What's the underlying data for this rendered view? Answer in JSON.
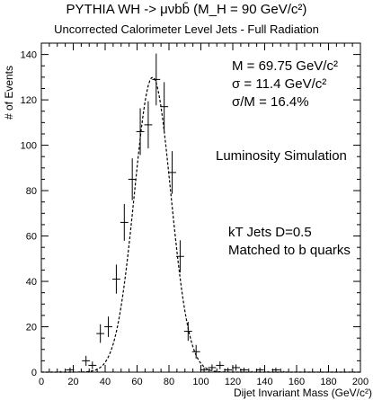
{
  "chart_data": {
    "type": "scatter",
    "title": "PYTHIA WH -> μνbb̄ (M_H = 90 GeV/c²)",
    "subtitle": "Uncorrected Calorimeter Level Jets - Full Radiation",
    "xlabel": "Dijet Invariant Mass (GeV/c²)",
    "ylabel": "# of Events",
    "xlim": [
      0,
      200
    ],
    "ylim": [
      0,
      145
    ],
    "x_ticks": [
      0,
      20,
      40,
      60,
      80,
      100,
      120,
      140,
      160,
      180,
      200
    ],
    "y_ticks": [
      0,
      20,
      40,
      60,
      80,
      100,
      120,
      140
    ],
    "grid": false,
    "series": [
      {
        "type": "points_with_error_bars",
        "x": [
          12,
          18,
          28,
          32,
          37,
          42,
          47,
          52,
          57,
          62,
          67,
          72,
          77,
          82,
          87,
          92,
          97,
          102,
          107,
          112,
          117,
          122,
          127,
          132,
          137,
          142,
          147,
          152
        ],
        "y": [
          0,
          1,
          5,
          3,
          17,
          20,
          41,
          66,
          85,
          106,
          109,
          129,
          117,
          88,
          51,
          18,
          9,
          1,
          2,
          3,
          1,
          2,
          1,
          0,
          1,
          0,
          1,
          0
        ],
        "yerr": [
          0.5,
          1,
          2.2,
          1.7,
          4.1,
          4.5,
          6.4,
          8.1,
          9.2,
          10.3,
          10.4,
          11.4,
          10.8,
          9.4,
          7.1,
          4.2,
          3.0,
          1,
          1.4,
          1.7,
          1,
          1.4,
          1,
          0.5,
          1,
          0.5,
          1,
          0.5
        ],
        "xerr": 2.5
      },
      {
        "type": "gaussian_fit",
        "mean": 69.75,
        "sigma": 11.4,
        "amplitude": 130
      }
    ],
    "annotations": {
      "fit_mass": "M = 69.75 GeV/c²",
      "fit_sigma": "σ = 11.4 GeV/c²",
      "fit_ratio": "σ/M = 16.4%",
      "simulation": "Luminosity Simulation",
      "jets": "kT Jets D=0.5",
      "matched": "Matched to b quarks"
    }
  }
}
